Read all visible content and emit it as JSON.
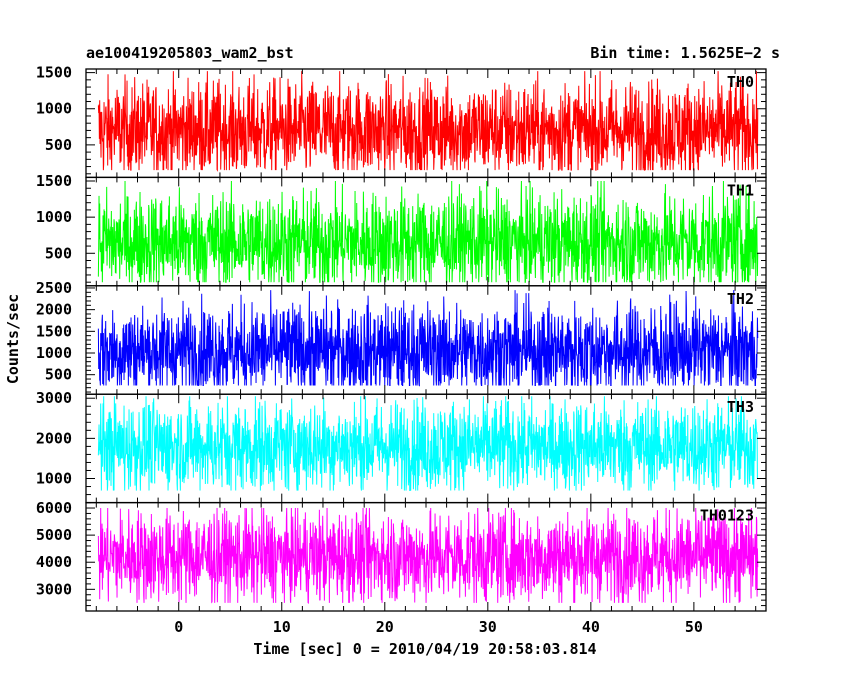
{
  "header": {
    "title": "ae100419205803_wam2_bst",
    "bin_time": "Bin time: 1.5625E−2 s"
  },
  "chart_data": {
    "type": "line",
    "title": "ae100419205803_wam2_bst",
    "xlabel": "Time [sec] 0 = 2010/04/19 20:58:03.814",
    "ylabel": "Counts/sec",
    "xlim": [
      -9,
      57
    ],
    "x_ticks": [
      0,
      10,
      20,
      30,
      40,
      50
    ],
    "x_range_data": [
      -7.8,
      56.2
    ],
    "bin_time_s": 0.015625,
    "panels": [
      {
        "name": "TH0",
        "color": "#ff0000",
        "ylim": [
          50,
          1550
        ],
        "y_ticks": [
          500,
          1000,
          1500
        ],
        "approx_mean": 700,
        "approx_min": 150,
        "approx_max": 1520
      },
      {
        "name": "TH1",
        "color": "#00ff00",
        "ylim": [
          50,
          1550
        ],
        "y_ticks": [
          500,
          1000,
          1500
        ],
        "approx_mean": 650,
        "approx_min": 100,
        "approx_max": 1500
      },
      {
        "name": "TH2",
        "color": "#0000ff",
        "ylim": [
          50,
          2550
        ],
        "y_ticks": [
          500,
          1000,
          1500,
          2000,
          2500
        ],
        "approx_mean": 1050,
        "approx_min": 250,
        "approx_max": 2450
      },
      {
        "name": "TH3",
        "color": "#00ffff",
        "ylim": [
          400,
          3100
        ],
        "y_ticks": [
          1000,
          2000,
          3000
        ],
        "approx_mean": 1800,
        "approx_min": 700,
        "approx_max": 3050
      },
      {
        "name": "TH0123",
        "color": "#ff00ff",
        "ylim": [
          2200,
          6200
        ],
        "y_ticks": [
          3000,
          4000,
          5000,
          6000
        ],
        "approx_mean": 4200,
        "approx_min": 2500,
        "approx_max": 6000
      }
    ]
  }
}
